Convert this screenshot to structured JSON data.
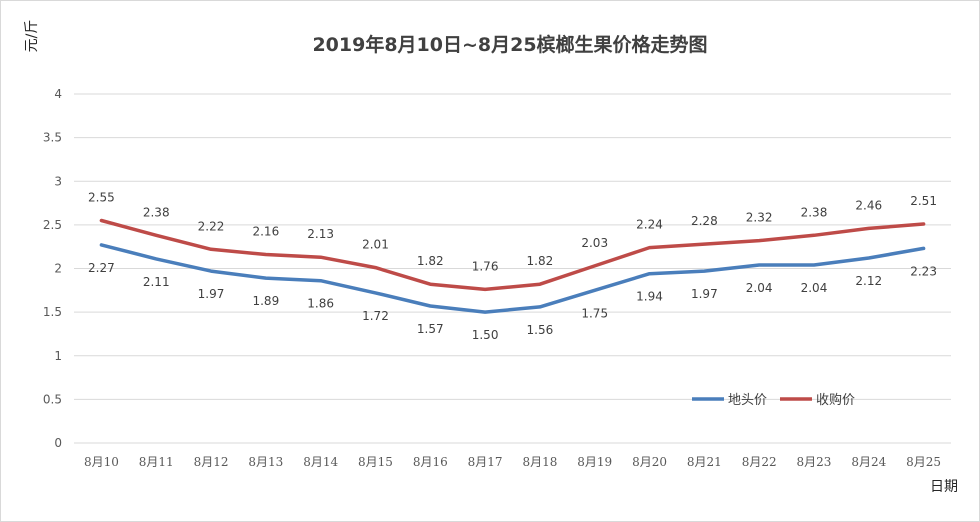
{
  "chart_data": {
    "type": "line",
    "title": "2019年8月10日~8月25槟榔生果价格走势图",
    "ylabel": "元/斤",
    "xlabel": "日期",
    "ylim": [
      0,
      4
    ],
    "yticks": [
      "0",
      "0.5",
      "1",
      "1.5",
      "2",
      "2.5",
      "3",
      "3.5",
      "4"
    ],
    "grid": true,
    "legend_position": "bottom-right",
    "categories": [
      "8月10",
      "8月11",
      "8月12",
      "8月13",
      "8月14",
      "8月15",
      "8月16",
      "8月17",
      "8月18",
      "8月19",
      "8月20",
      "8月21",
      "8月22",
      "8月23",
      "8月24",
      "8月25"
    ],
    "series": [
      {
        "name": "地头价",
        "color": "#4a7ebb",
        "values": [
          2.27,
          2.11,
          1.97,
          1.89,
          1.86,
          1.72,
          1.57,
          1.5,
          1.56,
          1.75,
          1.94,
          1.97,
          2.04,
          2.04,
          2.12,
          2.23
        ],
        "labels": [
          "2.27",
          "2.11",
          "1.97",
          "1.89",
          "1.86",
          "1.72",
          "1.57",
          "1.50",
          "1.56",
          "1.75",
          "1.94",
          "1.97",
          "2.04",
          "2.04",
          "2.12",
          "2.23"
        ],
        "label_side": "below"
      },
      {
        "name": "收购价",
        "color": "#be4b48",
        "values": [
          2.55,
          2.38,
          2.22,
          2.16,
          2.13,
          2.01,
          1.82,
          1.76,
          1.82,
          2.03,
          2.24,
          2.28,
          2.32,
          2.38,
          2.46,
          2.51
        ],
        "labels": [
          "2.55",
          "2.38",
          "2.22",
          "2.16",
          "2.13",
          "2.01",
          "1.82",
          "1.76",
          "1.82",
          "2.03",
          "2.24",
          "2.28",
          "2.32",
          "2.38",
          "2.46",
          "2.51"
        ],
        "label_side": "above"
      }
    ]
  }
}
